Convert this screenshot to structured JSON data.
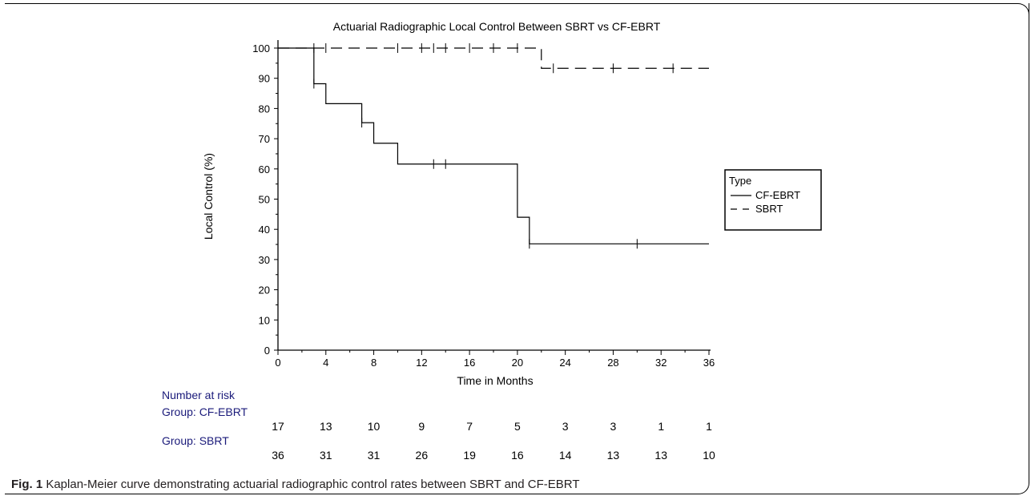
{
  "chart_data": {
    "type": "line",
    "title": "Actuarial Radiographic Local Control Between SBRT vs CF-EBRT",
    "xlabel": "Time in Months",
    "ylabel": "Local Control (%)",
    "xlim": [
      0,
      36
    ],
    "ylim": [
      0,
      100
    ],
    "x_ticks": [
      "0",
      "4",
      "8",
      "12",
      "16",
      "20",
      "24",
      "28",
      "32",
      "36"
    ],
    "y_ticks": [
      "0",
      "10",
      "20",
      "30",
      "40",
      "50",
      "60",
      "70",
      "80",
      "90",
      "100"
    ],
    "grid": false,
    "legend_position": "right",
    "legend_title": "Type",
    "series": [
      {
        "name": "CF-EBRT",
        "style": "solid",
        "steps": [
          [
            0,
            100
          ],
          [
            3,
            88.2
          ],
          [
            4,
            81.6
          ],
          [
            7,
            75.3
          ],
          [
            8,
            68.5
          ],
          [
            10,
            61.6
          ],
          [
            20,
            44.0
          ],
          [
            21,
            35.2
          ],
          [
            36,
            35.2
          ]
        ],
        "censor_x": [
          3,
          7,
          13,
          14,
          21,
          30
        ]
      },
      {
        "name": "SBRT",
        "style": "dashed",
        "steps": [
          [
            0,
            100
          ],
          [
            22,
            93.3
          ],
          [
            36,
            93.3
          ]
        ],
        "censor_x": [
          3,
          4,
          10,
          12,
          13,
          14,
          16,
          18,
          20,
          23,
          28,
          33
        ]
      }
    ],
    "risk_table": {
      "heading": "Number at risk",
      "groups": [
        {
          "label": "Group: CF-EBRT",
          "values": [
            "17",
            "13",
            "10",
            "9",
            "7",
            "5",
            "3",
            "3",
            "1",
            "1"
          ]
        },
        {
          "label": "Group: SBRT",
          "values": [
            "36",
            "31",
            "31",
            "26",
            "19",
            "16",
            "14",
            "13",
            "13",
            "10"
          ]
        }
      ]
    }
  },
  "caption": {
    "label": "Fig. 1",
    "text": " Kaplan-Meier curve demonstrating actuarial radiographic control rates between SBRT and CF-EBRT"
  }
}
